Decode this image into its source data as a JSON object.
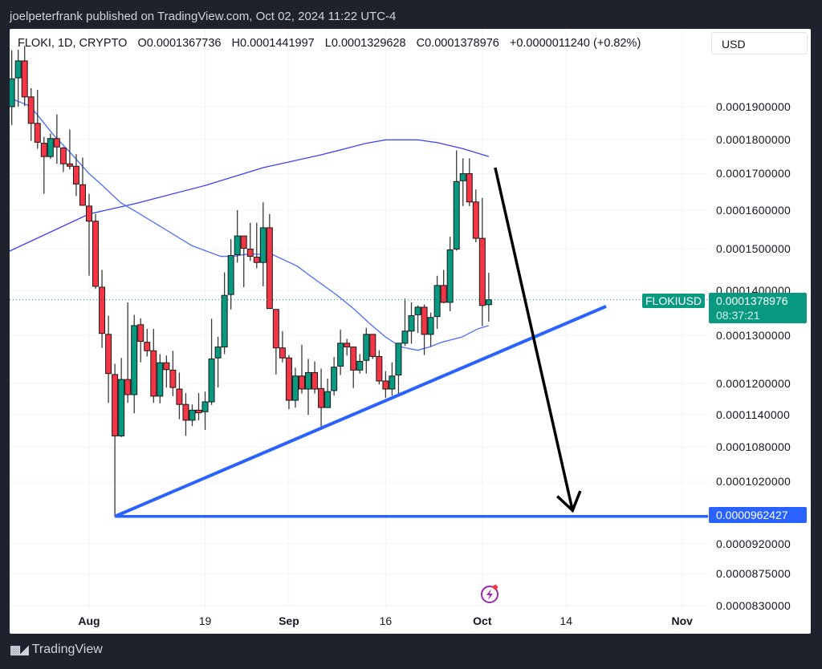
{
  "header": {
    "published": "joelpeterfrank published on TradingView.com, Oct 02, 2024 11:22 UTC-4"
  },
  "legend": {
    "symbol": "FLOKI, 1D, CRYPTO",
    "open": "O0.0001367736",
    "high": "H0.0001441997",
    "low": "L0.0001329628",
    "close": "C0.0001378976",
    "change": "+0.0000011240 (+0.82%)"
  },
  "currency_button": "USD",
  "last_price": {
    "symbol": "FLOKIUSD",
    "price": "0.0001378976",
    "countdown": "08:37:21",
    "color": "#089981"
  },
  "support_label": {
    "price": "0.0000962427",
    "color": "#2962ff"
  },
  "footer": {
    "brand": "TradingView",
    "logo_text": "TV"
  },
  "chart_data": {
    "type": "candlestick",
    "price_unit": "1e-4 USD",
    "scale": "log",
    "x_unit": "days from Aug 1 2024",
    "up_color": "#089981",
    "down_color": "#f23645",
    "first_day": -12,
    "candles": [
      [
        1.9,
        2.086,
        1.843,
        1.99
      ],
      [
        1.993,
        2.088,
        1.9,
        2.05
      ],
      [
        2.05,
        2.102,
        1.902,
        1.931
      ],
      [
        1.931,
        1.959,
        1.795,
        1.848
      ],
      [
        1.848,
        1.954,
        1.772,
        1.791
      ],
      [
        1.788,
        1.807,
        1.644,
        1.749
      ],
      [
        1.749,
        1.817,
        1.742,
        1.802
      ],
      [
        1.802,
        1.876,
        1.728,
        1.777
      ],
      [
        1.774,
        1.777,
        1.705,
        1.728
      ],
      [
        1.728,
        1.829,
        1.712,
        1.721
      ],
      [
        1.721,
        1.756,
        1.638,
        1.671
      ],
      [
        1.669,
        1.746,
        1.613,
        1.613
      ],
      [
        1.611,
        1.644,
        1.435,
        1.571
      ],
      [
        1.571,
        1.59,
        1.404,
        1.41
      ],
      [
        1.408,
        1.449,
        1.273,
        1.304
      ],
      [
        1.302,
        1.343,
        1.162,
        1.22
      ],
      [
        1.218,
        1.24,
        0.962,
        1.1
      ],
      [
        1.1,
        1.252,
        1.098,
        1.208
      ],
      [
        1.208,
        1.373,
        1.162,
        1.178
      ],
      [
        1.178,
        1.345,
        1.142,
        1.321
      ],
      [
        1.323,
        1.337,
        1.243,
        1.287
      ],
      [
        1.285,
        1.314,
        1.255,
        1.267
      ],
      [
        1.267,
        1.314,
        1.162,
        1.175
      ],
      [
        1.175,
        1.26,
        1.161,
        1.242
      ],
      [
        1.242,
        1.257,
        1.192,
        1.228
      ],
      [
        1.227,
        1.267,
        1.175,
        1.192
      ],
      [
        1.189,
        1.222,
        1.131,
        1.159
      ],
      [
        1.159,
        1.181,
        1.1,
        1.129
      ],
      [
        1.129,
        1.159,
        1.118,
        1.148
      ],
      [
        1.148,
        1.181,
        1.129,
        1.143
      ],
      [
        1.145,
        1.184,
        1.111,
        1.164
      ],
      [
        1.164,
        1.336,
        1.158,
        1.25
      ],
      [
        1.252,
        1.297,
        1.192,
        1.275
      ],
      [
        1.275,
        1.443,
        1.26,
        1.389
      ],
      [
        1.391,
        1.525,
        1.357,
        1.484
      ],
      [
        1.486,
        1.6,
        1.467,
        1.533
      ],
      [
        1.533,
        1.533,
        1.408,
        1.502
      ],
      [
        1.5,
        1.567,
        1.471,
        1.482
      ],
      [
        1.48,
        1.567,
        1.453,
        1.467
      ],
      [
        1.467,
        1.621,
        1.41,
        1.554
      ],
      [
        1.554,
        1.59,
        1.359,
        1.359
      ],
      [
        1.357,
        1.357,
        1.218,
        1.273
      ],
      [
        1.273,
        1.309,
        1.243,
        1.252
      ],
      [
        1.252,
        1.258,
        1.15,
        1.167
      ],
      [
        1.167,
        1.232,
        1.153,
        1.215
      ],
      [
        1.215,
        1.28,
        1.18,
        1.189
      ],
      [
        1.189,
        1.25,
        1.139,
        1.222
      ],
      [
        1.222,
        1.245,
        1.18,
        1.189
      ],
      [
        1.19,
        1.23,
        1.111,
        1.153
      ],
      [
        1.153,
        1.21,
        1.153,
        1.184
      ],
      [
        1.186,
        1.254,
        1.176,
        1.233
      ],
      [
        1.235,
        1.312,
        1.217,
        1.283
      ],
      [
        1.283,
        1.292,
        1.257,
        1.275
      ],
      [
        1.275,
        1.275,
        1.191,
        1.227
      ],
      [
        1.227,
        1.26,
        1.22,
        1.245
      ],
      [
        1.247,
        1.316,
        1.22,
        1.302
      ],
      [
        1.302,
        1.302,
        1.25,
        1.255
      ],
      [
        1.255,
        1.268,
        1.198,
        1.205
      ],
      [
        1.205,
        1.225,
        1.172,
        1.189
      ],
      [
        1.189,
        1.243,
        1.176,
        1.215
      ],
      [
        1.217,
        1.283,
        1.178,
        1.283
      ],
      [
        1.283,
        1.382,
        1.277,
        1.309
      ],
      [
        1.309,
        1.373,
        1.282,
        1.343
      ],
      [
        1.345,
        1.366,
        1.305,
        1.362
      ],
      [
        1.362,
        1.368,
        1.258,
        1.302
      ],
      [
        1.302,
        1.35,
        1.275,
        1.339
      ],
      [
        1.341,
        1.435,
        1.314,
        1.412
      ],
      [
        1.412,
        1.449,
        1.371,
        1.373
      ],
      [
        1.373,
        1.531,
        1.353,
        1.498
      ],
      [
        1.5,
        1.767,
        1.496,
        1.678
      ],
      [
        1.68,
        1.744,
        1.611,
        1.7
      ],
      [
        1.7,
        1.744,
        1.611,
        1.622
      ],
      [
        1.622,
        1.656,
        1.517,
        1.527
      ],
      [
        1.527,
        1.633,
        1.32,
        1.366
      ],
      [
        1.367736,
        1.441997,
        1.329628,
        1.378976
      ]
    ],
    "moving_averages": [
      {
        "name": "MA long",
        "color": "#3d3dff",
        "points": [
          [
            -13,
            1.49
          ],
          [
            0,
            1.59
          ],
          [
            7,
            1.617
          ],
          [
            18,
            1.667
          ],
          [
            27,
            1.717
          ],
          [
            36,
            1.754
          ],
          [
            43,
            1.788
          ],
          [
            46,
            1.798
          ],
          [
            51,
            1.798
          ],
          [
            54,
            1.79
          ],
          [
            58,
            1.772
          ],
          [
            62,
            1.749
          ]
        ]
      },
      {
        "name": "MA short",
        "color": "#4a6cff",
        "points": [
          [
            -12,
            1.925
          ],
          [
            -9.2,
            1.902
          ],
          [
            -7.6,
            1.864
          ],
          [
            -5.7,
            1.817
          ],
          [
            -2.6,
            1.754
          ],
          [
            0,
            1.7
          ],
          [
            1.7,
            1.673
          ],
          [
            4.9,
            1.62
          ],
          [
            7.3,
            1.596
          ],
          [
            11,
            1.558
          ],
          [
            16,
            1.508
          ],
          [
            20.4,
            1.482
          ],
          [
            22.3,
            1.482
          ],
          [
            24.8,
            1.488
          ],
          [
            28.5,
            1.486
          ],
          [
            32.3,
            1.458
          ],
          [
            34.1,
            1.437
          ],
          [
            38.5,
            1.389
          ],
          [
            41,
            1.359
          ],
          [
            43.5,
            1.326
          ],
          [
            46,
            1.296
          ],
          [
            48.4,
            1.275
          ],
          [
            51,
            1.268
          ],
          [
            52.8,
            1.275
          ],
          [
            54.7,
            1.285
          ],
          [
            57.8,
            1.296
          ],
          [
            60.3,
            1.314
          ],
          [
            62,
            1.321
          ]
        ]
      }
    ],
    "drawings": {
      "support_line": {
        "price": 0.962427,
        "from_day": 4,
        "color": "#2962ff"
      },
      "trend_line": {
        "from": [
          4,
          0.962427
        ],
        "to": [
          80.2,
          1.364
        ],
        "color": "#2962ff"
      },
      "arrow": {
        "from": [
          63,
          1.717
        ],
        "to": [
          75,
          0.972
        ],
        "color": "#000000"
      }
    },
    "y_ticks": [
      "0.0001900000",
      "0.0001800000",
      "0.0001700000",
      "0.0001600000",
      "0.0001500000",
      "0.0001400000",
      "0.0001300000",
      "0.0001200000",
      "0.0001140000",
      "0.0001080000",
      "0.0001020000",
      "0.0000920000",
      "0.0000875000",
      "0.0000830000"
    ],
    "y_tick_values": [
      1.9,
      1.8,
      1.7,
      1.6,
      1.5,
      1.4,
      1.3,
      1.2,
      1.14,
      1.08,
      1.02,
      0.92,
      0.875,
      0.83
    ],
    "x_ticks": [
      {
        "label": "Aug",
        "day": 0,
        "bold": true
      },
      {
        "label": "19",
        "day": 18,
        "bold": false
      },
      {
        "label": "Sep",
        "day": 31,
        "bold": true
      },
      {
        "label": "16",
        "day": 46,
        "bold": false
      },
      {
        "label": "Oct",
        "day": 61,
        "bold": true
      },
      {
        "label": "14",
        "day": 74,
        "bold": false
      },
      {
        "label": "Nov",
        "day": 92,
        "bold": true
      }
    ],
    "grid": true
  }
}
